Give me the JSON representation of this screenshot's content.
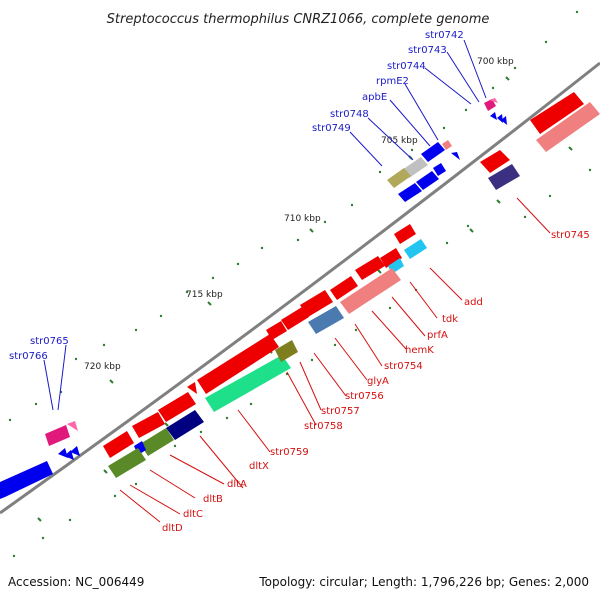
{
  "map": {
    "title": "Streptococcus thermophilus CNRZ1066, complete genome",
    "accession": "Accession: NC_006449",
    "summary": "Topology: circular; Length: 1,796,226 bp; Genes: 2,000",
    "ticks": [
      "700 kbp",
      "705 kbp",
      "710 kbp",
      "715 kbp",
      "720 kbp"
    ],
    "forward_labels": [
      "str0742",
      "str0743",
      "str0744",
      "rpmE2",
      "apbE",
      "str0748",
      "str0749",
      "str0765",
      "str0766"
    ],
    "reverse_labels": [
      "str0745",
      "add",
      "tdk",
      "prfA",
      "hemK",
      "str0754",
      "glyA",
      "str0756",
      "str0757",
      "str0758",
      "str0759",
      "dltX",
      "dltA",
      "dltB",
      "dltC",
      "dltD"
    ],
    "colors": {
      "forward_cds": "#0000ee",
      "reverse_cds": "#ee0000",
      "backbone": "#808080",
      "tick": "#2e7d32",
      "label_forward": "#1a1ac8",
      "label_reverse": "#d41010"
    }
  }
}
